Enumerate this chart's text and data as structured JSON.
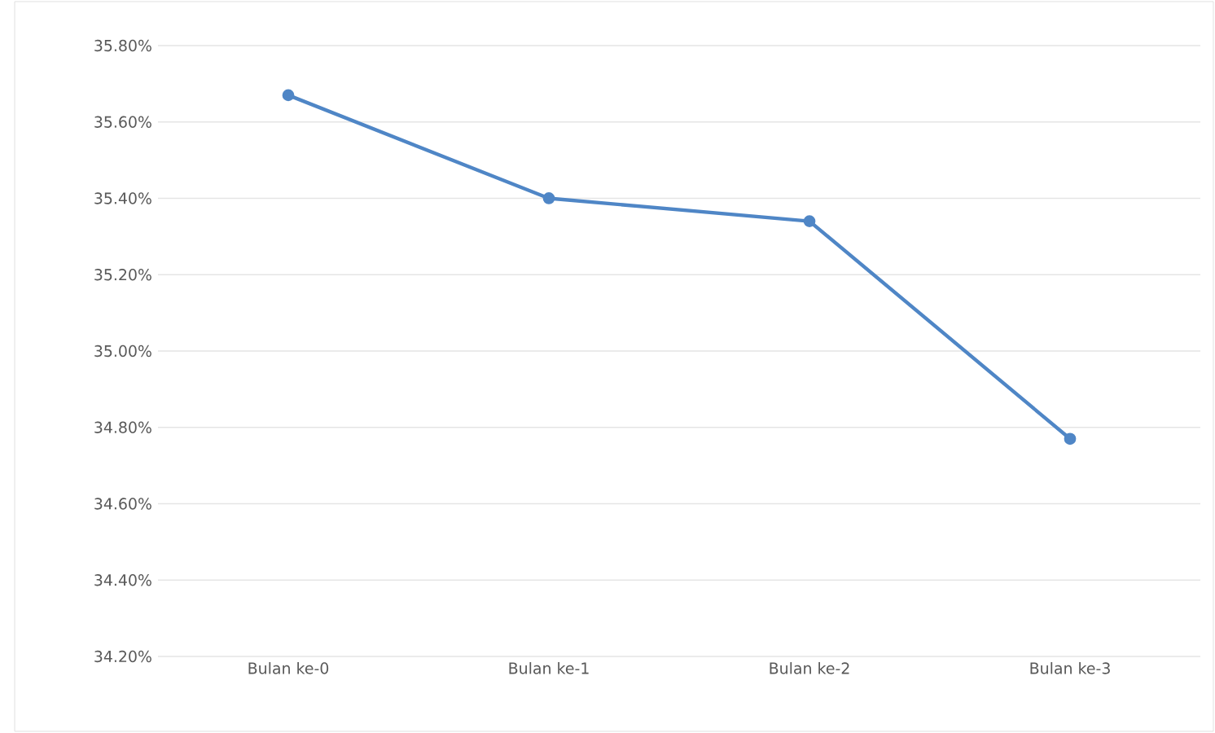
{
  "chart_data": {
    "type": "line",
    "categories": [
      "Bulan ke-0",
      "Bulan ke-1",
      "Bulan ke-2",
      "Bulan ke-3"
    ],
    "series": [
      {
        "color": "#4f86c6",
        "values": [
          35.67,
          35.4,
          35.34,
          34.77
        ]
      }
    ],
    "ylim": [
      34.2,
      35.8
    ],
    "yticks": [
      {
        "value": 34.2,
        "label": "34.20%"
      },
      {
        "value": 34.4,
        "label": "34.40%"
      },
      {
        "value": 34.6,
        "label": "34.60%"
      },
      {
        "value": 34.8,
        "label": "34.80%"
      },
      {
        "value": 35.0,
        "label": "35.00%"
      },
      {
        "value": 35.2,
        "label": "35.20%"
      },
      {
        "value": 35.4,
        "label": "35.40%"
      },
      {
        "value": 35.6,
        "label": "35.60%"
      },
      {
        "value": 35.8,
        "label": "35.80%"
      }
    ],
    "grid": "y",
    "marker": "circle",
    "line_style": "solid"
  }
}
